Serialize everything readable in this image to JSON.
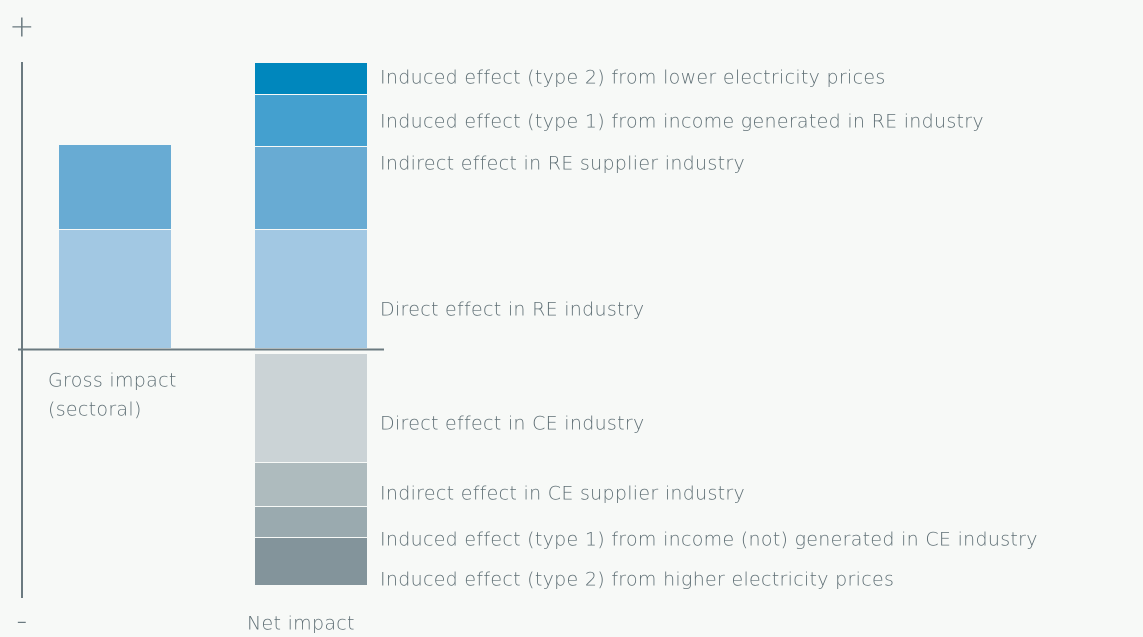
{
  "axis": {
    "plus": "+",
    "minus": "-"
  },
  "bars": [
    {
      "label": [
        "Gross impact",
        "(sectoral)"
      ]
    },
    {
      "label": [
        "Net impact"
      ]
    }
  ],
  "segments": [
    "Induced effect (type 2) from lower electricity prices",
    "Induced effect (type 1) from income generated in RE industry",
    "Indirect effect in RE supplier industry",
    "Direct effect in RE industry",
    "Direct effect in CE industry",
    "Indirect effect in CE supplier industry",
    "Induced effect (type 1) from income (not) generated in CE industry",
    "Induced effect (type 2) from higher electricity prices"
  ]
}
